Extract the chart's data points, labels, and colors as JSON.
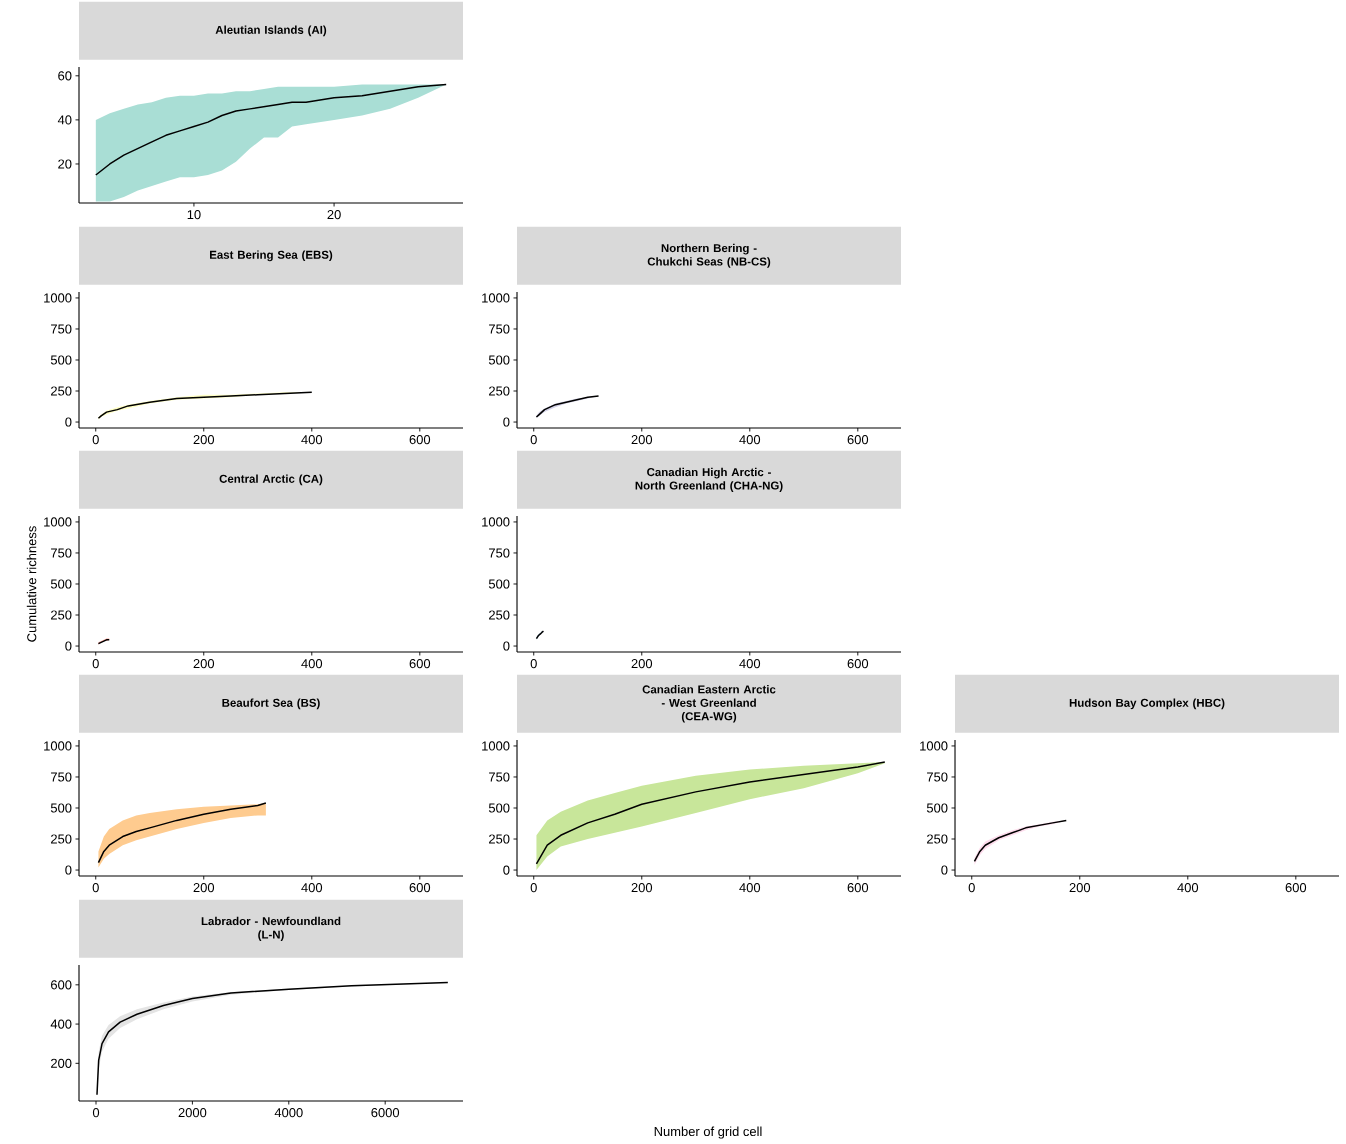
{
  "chart_data": [
    {
      "type": "line",
      "title": "Aleutian Islands (AI)",
      "xlim": [
        1.8,
        29.2
      ],
      "ylim": [
        2.3,
        64
      ],
      "xticks": [
        10,
        20
      ],
      "yticks": [
        20,
        40,
        60
      ],
      "x": [
        3,
        4,
        5,
        6,
        7,
        8,
        9,
        10,
        11,
        12,
        13,
        14,
        15,
        16,
        17,
        18,
        20,
        22,
        24,
        26,
        28
      ],
      "series": [
        {
          "color": "#000000",
          "colors": [
            "#a9ded5",
            "#a9ded5",
            "#a9ded5",
            "#a9ded5",
            "#a9ded5",
            "#a9ded5",
            "#a9ded5",
            "#a9ded5",
            "#a9ded5",
            "#a9ded5",
            "#a9ded5",
            "#a9ded5",
            "#a9ded5",
            "#a9ded5",
            "#a9ded5",
            "#a9ded5",
            "#a9ded5",
            "#a9ded5",
            "#a9ded5",
            "#a9ded5",
            "#a9ded5"
          ],
          "values": [
            15,
            20,
            24,
            27,
            30,
            33,
            35,
            37,
            39,
            42,
            44,
            45,
            46,
            47,
            48,
            48,
            50,
            51,
            53,
            55,
            56
          ],
          "upper": [
            40,
            43,
            45,
            47,
            48,
            50,
            51,
            51,
            52,
            52,
            53,
            53,
            54,
            55,
            55,
            55,
            55,
            56,
            56,
            56,
            56
          ],
          "lower": [
            3,
            3,
            5,
            8,
            10,
            12,
            14,
            14,
            15,
            17,
            21,
            27,
            32,
            32,
            37,
            38,
            40,
            42,
            45,
            50,
            56
          ]
        }
      ]
    },
    {
      "type": "line",
      "title": "East Bering Sea (EBS)",
      "xlim": [
        -31,
        680
      ],
      "ylim": [
        -48,
        1048
      ],
      "xticks": [
        0,
        200,
        400,
        600
      ],
      "yticks": [
        0,
        250,
        500,
        750,
        1000
      ],
      "x": [
        5,
        10,
        20,
        40,
        60,
        100,
        150,
        200,
        250,
        300,
        350,
        400
      ],
      "series": [
        {
          "color": "#000000",
          "colors": [
            "#ffffc4",
            "#ffffc4",
            "#ffffc4",
            "#ffffc4",
            "#ffffc4",
            "#ffffc4",
            "#ffffc4",
            "#ffffc4",
            "#ffffc4",
            "#ffffc4",
            "#ffffc4",
            "#ffffc4"
          ],
          "values": [
            30,
            50,
            80,
            100,
            130,
            160,
            190,
            200,
            210,
            220,
            230,
            240
          ],
          "upper": [
            40,
            60,
            90,
            120,
            140,
            170,
            200,
            220,
            220,
            230,
            240,
            240
          ],
          "lower": [
            20,
            40,
            60,
            90,
            110,
            150,
            180,
            190,
            200,
            220,
            230,
            240
          ]
        }
      ]
    },
    {
      "type": "line",
      "title": "Northern Bering -\nChukchi Seas (NB-CS)",
      "xlim": [
        -31,
        680
      ],
      "ylim": [
        -48,
        1048
      ],
      "xticks": [
        0,
        200,
        400,
        600
      ],
      "yticks": [
        0,
        250,
        500,
        750,
        1000
      ],
      "x": [
        5,
        10,
        20,
        40,
        60,
        80,
        100,
        120
      ],
      "series": [
        {
          "color": "#000000",
          "colors": [
            "#d2d0e6",
            "#d2d0e6",
            "#d2d0e6",
            "#d2d0e6",
            "#d2d0e6",
            "#d2d0e6",
            "#d2d0e6",
            "#d2d0e6"
          ],
          "values": [
            40,
            60,
            100,
            140,
            160,
            180,
            200,
            210
          ],
          "upper": [
            50,
            80,
            110,
            150,
            170,
            190,
            200,
            210
          ],
          "lower": [
            30,
            50,
            80,
            120,
            150,
            170,
            190,
            210
          ]
        }
      ]
    },
    {
      "type": "line",
      "title": "Central Arctic (CA)",
      "ylabel": "Cumulative richness",
      "xlim": [
        -31,
        680
      ],
      "ylim": [
        -48,
        1048
      ],
      "xticks": [
        0,
        200,
        400,
        600
      ],
      "yticks": [
        0,
        250,
        500,
        750,
        1000
      ],
      "x": [
        5,
        10,
        15,
        20,
        25
      ],
      "series": [
        {
          "color": "#000000",
          "colors": [
            "#fca69d",
            "#fca69d",
            "#fca69d",
            "#fca69d",
            "#fca69d"
          ],
          "values": [
            20,
            30,
            40,
            50,
            50
          ],
          "upper": [
            30,
            40,
            50,
            60,
            60
          ],
          "lower": [
            10,
            30,
            40,
            40,
            50
          ]
        }
      ]
    },
    {
      "type": "line",
      "title": "Canadian High Arctic -\nNorth Greenland (CHA-NG)",
      "xlim": [
        -31,
        680
      ],
      "ylim": [
        -48,
        1048
      ],
      "xticks": [
        0,
        200,
        400,
        600
      ],
      "yticks": [
        0,
        250,
        500,
        750,
        1000
      ],
      "x": [
        5,
        8,
        10,
        13,
        15,
        18
      ],
      "series": [
        {
          "color": "#000000",
          "colors": [
            "#a6cae4",
            "#a6cae4",
            "#a6cae4",
            "#a6cae4",
            "#a6cae4",
            "#a6cae4"
          ],
          "values": [
            60,
            80,
            90,
            100,
            110,
            120
          ],
          "upper": [
            70,
            90,
            100,
            110,
            120,
            120
          ],
          "lower": [
            50,
            70,
            80,
            100,
            110,
            120
          ]
        }
      ]
    },
    {
      "type": "line",
      "title": "Beaufort Sea (BS)",
      "xlim": [
        -31,
        680
      ],
      "ylim": [
        -48,
        1048
      ],
      "xticks": [
        0,
        200,
        400,
        600
      ],
      "yticks": [
        0,
        250,
        500,
        750,
        1000
      ],
      "x": [
        5,
        15,
        25,
        50,
        75,
        100,
        150,
        200,
        250,
        300,
        315
      ],
      "series": [
        {
          "color": "#000000",
          "colors": [
            "#fecb8f",
            "#fecb8f",
            "#fecb8f",
            "#fecb8f",
            "#fecb8f",
            "#fecb8f",
            "#fecb8f",
            "#fecb8f",
            "#fecb8f",
            "#fecb8f",
            "#fecb8f"
          ],
          "values": [
            60,
            150,
            200,
            270,
            310,
            340,
            400,
            450,
            490,
            520,
            540
          ],
          "upper": [
            150,
            270,
            330,
            400,
            440,
            460,
            490,
            510,
            520,
            530,
            540
          ],
          "lower": [
            20,
            90,
            130,
            200,
            240,
            270,
            330,
            380,
            420,
            440,
            440
          ]
        }
      ]
    },
    {
      "type": "line",
      "title": "Canadian Eastern Arctic\n- West Greenland\n(CEA-WG)",
      "xlabel": "Number of grid cell",
      "xlim": [
        -31,
        680
      ],
      "ylim": [
        -48,
        1048
      ],
      "xticks": [
        0,
        200,
        400,
        600
      ],
      "yticks": [
        0,
        250,
        500,
        750,
        1000
      ],
      "x": [
        5,
        25,
        50,
        100,
        150,
        200,
        300,
        400,
        500,
        600,
        650
      ],
      "series": [
        {
          "color": "#000000",
          "colors": [
            "#c8e69a",
            "#c8e69a",
            "#c8e69a",
            "#c8e69a",
            "#c8e69a",
            "#c8e69a",
            "#c8e69a",
            "#c8e69a",
            "#c8e69a",
            "#c8e69a",
            "#c8e69a"
          ],
          "values": [
            50,
            200,
            280,
            380,
            450,
            530,
            630,
            710,
            770,
            830,
            870
          ],
          "upper": [
            280,
            400,
            470,
            560,
            620,
            680,
            760,
            810,
            840,
            860,
            870
          ],
          "lower": [
            0,
            110,
            190,
            250,
            300,
            350,
            460,
            570,
            660,
            780,
            860
          ]
        }
      ]
    },
    {
      "type": "line",
      "title": "Hudson Bay Complex (HBC)",
      "xlim": [
        -31,
        680
      ],
      "ylim": [
        -48,
        1048
      ],
      "xticks": [
        0,
        200,
        400,
        600
      ],
      "yticks": [
        0,
        250,
        500,
        750,
        1000
      ],
      "x": [
        5,
        15,
        25,
        50,
        75,
        100,
        125,
        150,
        175
      ],
      "series": [
        {
          "color": "#000000",
          "colors": [
            "#fddcec",
            "#fddcec",
            "#fddcec",
            "#fddcec",
            "#fddcec",
            "#fddcec",
            "#fddcec",
            "#fddcec",
            "#fddcec"
          ],
          "values": [
            70,
            150,
            200,
            260,
            300,
            340,
            360,
            380,
            400
          ],
          "upper": [
            100,
            180,
            230,
            280,
            320,
            350,
            370,
            390,
            400
          ],
          "lower": [
            40,
            120,
            170,
            240,
            280,
            320,
            350,
            370,
            400
          ]
        }
      ]
    },
    {
      "type": "line",
      "title": "Labrador - Newfoundland\n(L-N)",
      "xlim": [
        -353,
        7615
      ],
      "ylim": [
        8,
        701
      ],
      "xticks": [
        0,
        2000,
        4000,
        6000
      ],
      "yticks": [
        200,
        400,
        600
      ],
      "x": [
        20,
        55,
        125,
        260,
        500,
        850,
        1400,
        2000,
        2800,
        4000,
        5300,
        7300
      ],
      "series": [
        {
          "color": "#000000",
          "colors": [
            "#e4e4e4",
            "#e4e4e4",
            "#e4e4e4",
            "#e4e4e4",
            "#e4e4e4",
            "#e4e4e4",
            "#e4e4e4",
            "#e4e4e4",
            "#e4e4e4",
            "#e4e4e4",
            "#e4e4e4",
            "#e4e4e4"
          ],
          "values": [
            40,
            215,
            300,
            360,
            410,
            450,
            495,
            530,
            558,
            578,
            595,
            612
          ],
          "upper": [
            60,
            260,
            340,
            395,
            440,
            475,
            510,
            540,
            563,
            580,
            597,
            613
          ],
          "lower": [
            30,
            170,
            260,
            325,
            380,
            425,
            475,
            515,
            550,
            574,
            592,
            611
          ]
        }
      ]
    }
  ]
}
